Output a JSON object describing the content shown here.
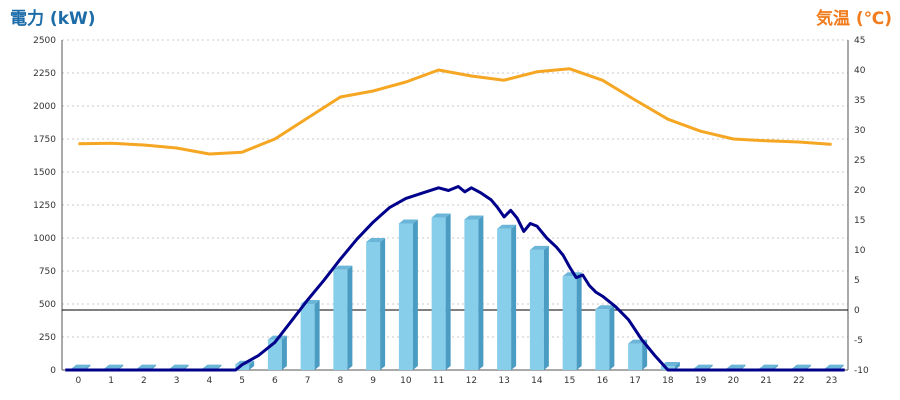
{
  "chart_data": {
    "type": "bar",
    "left_axis_title": "電力 (kW)",
    "right_axis_title": "気温 (℃)",
    "categories": [
      "0",
      "1",
      "2",
      "3",
      "4",
      "5",
      "6",
      "7",
      "8",
      "9",
      "10",
      "11",
      "12",
      "13",
      "14",
      "15",
      "16",
      "17",
      "18",
      "19",
      "20",
      "21",
      "22",
      "23"
    ],
    "y_left": {
      "min": 0,
      "max": 2500,
      "ticks": [
        0,
        250,
        500,
        750,
        1000,
        1250,
        1500,
        1750,
        2000,
        2250,
        2500
      ]
    },
    "y_right": {
      "min": -10,
      "max": 45,
      "ticks": [
        -10,
        -5,
        0,
        5,
        10,
        15,
        20,
        25,
        30,
        35,
        40,
        45
      ]
    },
    "grid": true,
    "legend": "none",
    "series": [
      {
        "type": "bar",
        "axis": "left",
        "color": "#87ceeb",
        "values": [
          10,
          10,
          10,
          10,
          10,
          40,
          230,
          500,
          760,
          970,
          1110,
          1155,
          1140,
          1070,
          910,
          710,
          460,
          200,
          30,
          10,
          10,
          10,
          10,
          10
        ]
      },
      {
        "type": "line",
        "axis": "left",
        "color": "#00008b",
        "points": [
          [
            -0.4,
            0
          ],
          [
            4.8,
            0
          ],
          [
            5.0,
            40
          ],
          [
            5.5,
            110
          ],
          [
            6.0,
            210
          ],
          [
            6.5,
            370
          ],
          [
            7.0,
            530
          ],
          [
            7.5,
            680
          ],
          [
            8.0,
            840
          ],
          [
            8.5,
            990
          ],
          [
            9.0,
            1120
          ],
          [
            9.5,
            1230
          ],
          [
            10.0,
            1300
          ],
          [
            10.5,
            1340
          ],
          [
            11.0,
            1380
          ],
          [
            11.3,
            1360
          ],
          [
            11.6,
            1390
          ],
          [
            11.8,
            1350
          ],
          [
            12.0,
            1380
          ],
          [
            12.3,
            1340
          ],
          [
            12.6,
            1290
          ],
          [
            12.8,
            1230
          ],
          [
            13.0,
            1160
          ],
          [
            13.2,
            1210
          ],
          [
            13.4,
            1150
          ],
          [
            13.6,
            1050
          ],
          [
            13.8,
            1110
          ],
          [
            14.0,
            1090
          ],
          [
            14.3,
            1000
          ],
          [
            14.6,
            930
          ],
          [
            14.8,
            870
          ],
          [
            15.0,
            780
          ],
          [
            15.2,
            700
          ],
          [
            15.4,
            720
          ],
          [
            15.6,
            640
          ],
          [
            15.8,
            590
          ],
          [
            16.0,
            560
          ],
          [
            16.4,
            480
          ],
          [
            16.8,
            380
          ],
          [
            17.2,
            230
          ],
          [
            17.6,
            110
          ],
          [
            18.0,
            0
          ],
          [
            23.4,
            0
          ]
        ]
      },
      {
        "type": "line",
        "axis": "right",
        "color": "#f5a623",
        "x": [
          0,
          1,
          2,
          3,
          4,
          5,
          6,
          7,
          8,
          9,
          10,
          11,
          12,
          13,
          14,
          15,
          16,
          17,
          18,
          19,
          20,
          21,
          22,
          23
        ],
        "values": [
          27.7,
          27.8,
          27.5,
          27.0,
          26.0,
          26.3,
          28.5,
          32.0,
          35.5,
          36.5,
          38.0,
          40.0,
          39.0,
          38.3,
          39.7,
          40.2,
          38.3,
          35.0,
          31.8,
          29.8,
          28.5,
          28.2,
          28.0,
          27.6
        ]
      }
    ]
  }
}
